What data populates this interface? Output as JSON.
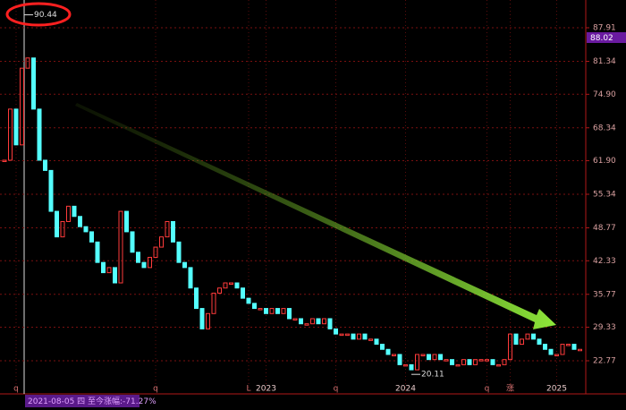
{
  "chart_data": {
    "type": "candle-line",
    "categories": [
      null,
      null,
      "q",
      null,
      null,
      null,
      null,
      null,
      null,
      null,
      null,
      null,
      null,
      null,
      null,
      null,
      null,
      null,
      null,
      null,
      null,
      null,
      null,
      null,
      null,
      null,
      "q",
      null,
      null,
      null,
      null,
      null,
      null,
      null,
      null,
      null,
      null,
      null,
      null,
      null,
      null,
      null,
      "L",
      null,
      null,
      "2023",
      null,
      null,
      null,
      null,
      null,
      null,
      null,
      null,
      null,
      null,
      null,
      "q",
      null,
      null,
      null,
      null,
      null,
      null,
      null,
      null,
      null,
      null,
      null,
      "2024",
      null,
      null,
      null,
      null,
      null,
      null,
      null,
      null,
      null,
      null,
      null,
      null,
      null,
      "q",
      null,
      null,
      null,
      "涨",
      null,
      null,
      null,
      null,
      null,
      null,
      null,
      "2025",
      null,
      null,
      null,
      null
    ],
    "values": [
      62,
      72,
      65,
      80,
      82,
      72,
      62,
      60,
      52,
      47,
      50,
      53,
      51,
      49,
      48,
      46,
      42,
      40,
      41,
      38,
      52,
      48,
      44,
      42,
      41,
      43,
      45,
      47,
      50,
      46,
      42,
      41,
      37,
      33,
      29,
      32,
      36,
      37,
      38,
      38,
      37,
      35,
      34,
      33,
      33,
      32,
      33,
      32,
      33,
      31,
      31,
      30,
      30,
      31,
      30,
      31,
      29,
      28,
      28,
      28,
      27,
      28,
      27,
      27,
      26,
      25,
      24,
      24,
      22,
      22,
      21,
      24,
      24,
      23,
      24,
      23,
      23,
      22,
      22,
      23,
      22,
      23,
      23,
      23,
      22,
      22,
      23,
      28,
      26,
      27,
      28,
      27,
      26,
      25,
      24,
      24,
      26,
      26,
      25,
      25
    ],
    "up_color": "#ff3b3b",
    "down_color": "#54ffff",
    "ylim": [
      16.64,
      93.34
    ],
    "yticks": [
      87.91,
      81.34,
      {
        "value": 74.9,
        "label": "74.90"
      },
      68.34,
      {
        "value": 61.9,
        "label": "61.90"
      },
      55.34,
      48.77,
      42.33,
      35.77,
      29.33,
      22.77
    ],
    "grid": true,
    "high": 90.44,
    "low": 20.11,
    "price_tag": "88.02",
    "footer": "2021-08-05 四 至今涨幅:-71.27%"
  }
}
